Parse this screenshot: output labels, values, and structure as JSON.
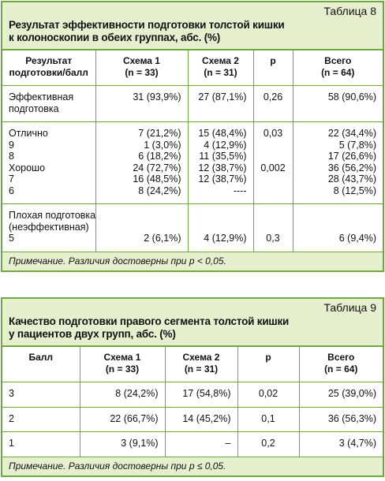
{
  "table8": {
    "label": "Таблица 8",
    "title": [
      "Результат эффективности подготовки толстой кишки",
      "к колоноскопии в обеих группах, абс. (%)"
    ],
    "headers": [
      [
        "Результат",
        "подготовки/балл"
      ],
      [
        "Схема 1",
        "(n = 33)"
      ],
      [
        "Схема 2",
        "(n = 31)"
      ],
      [
        "р"
      ],
      [
        "Всего",
        "(n = 64)"
      ]
    ],
    "groups": [
      [
        [
          "Эффективная",
          "31 (93,9%)",
          "27 (87,1%)",
          "0,26",
          "58 (90,6%)"
        ],
        [
          "подготовка",
          null,
          null,
          null,
          null
        ]
      ],
      [
        [
          "Отлично",
          "7 (21,2%)",
          "15 (48,4%)",
          "0,03",
          "22 (34,4%)"
        ],
        [
          "9",
          "1 (3,0%)",
          "4 (12,9%)",
          null,
          "5 (7,8%)"
        ],
        [
          "8",
          "6 (18,2%)",
          "11 (35,5%)",
          null,
          "17 (26,6%)"
        ],
        [
          "Хорошо",
          "24 (72,7%)",
          "12 (38,7%)",
          "0,002",
          "36 (56,2%)"
        ],
        [
          "7",
          "16 (48,5%)",
          "12 (38,7%)",
          null,
          "28 (43,7%)"
        ],
        [
          "6",
          "8 (24,2%)",
          "----",
          null,
          "8 (12,5%)"
        ]
      ],
      [
        [
          "Плохая подготовка",
          null,
          null,
          null,
          null
        ],
        [
          "(неэффективная)",
          null,
          null,
          null,
          null
        ],
        [
          "5",
          "2 (6,1%)",
          "4 (12,9%)",
          "0,3",
          "6 (9,4%)"
        ]
      ]
    ],
    "note": "Примечание. Различия достоверны при р < 0,05."
  },
  "table9": {
    "label": "Таблица 9",
    "title": [
      "Качество подготовки правого сегмента толстой кишки",
      "у пациентов двух групп, абс. (%)"
    ],
    "headers": [
      [
        "Балл"
      ],
      [
        "Схема 1",
        "(n = 33)"
      ],
      [
        "Схема 2",
        "(n = 31)"
      ],
      [
        "р"
      ],
      [
        "Всего",
        "(n = 64)"
      ]
    ],
    "groups": [
      [
        [
          "3",
          "8 (24,2%)",
          "17 (54,8%)",
          "0,02",
          "25 (39,0%)"
        ]
      ],
      [
        [
          "2",
          "22 (66,7%)",
          "14 (45,2%)",
          "0,1",
          "36 (56,3%)"
        ]
      ],
      [
        [
          "1",
          "3 (9,1%)",
          "–",
          "0,2",
          "3 (4,7%)"
        ]
      ]
    ],
    "note": "Примечание. Различия достоверны при р ≤ 0,05."
  }
}
